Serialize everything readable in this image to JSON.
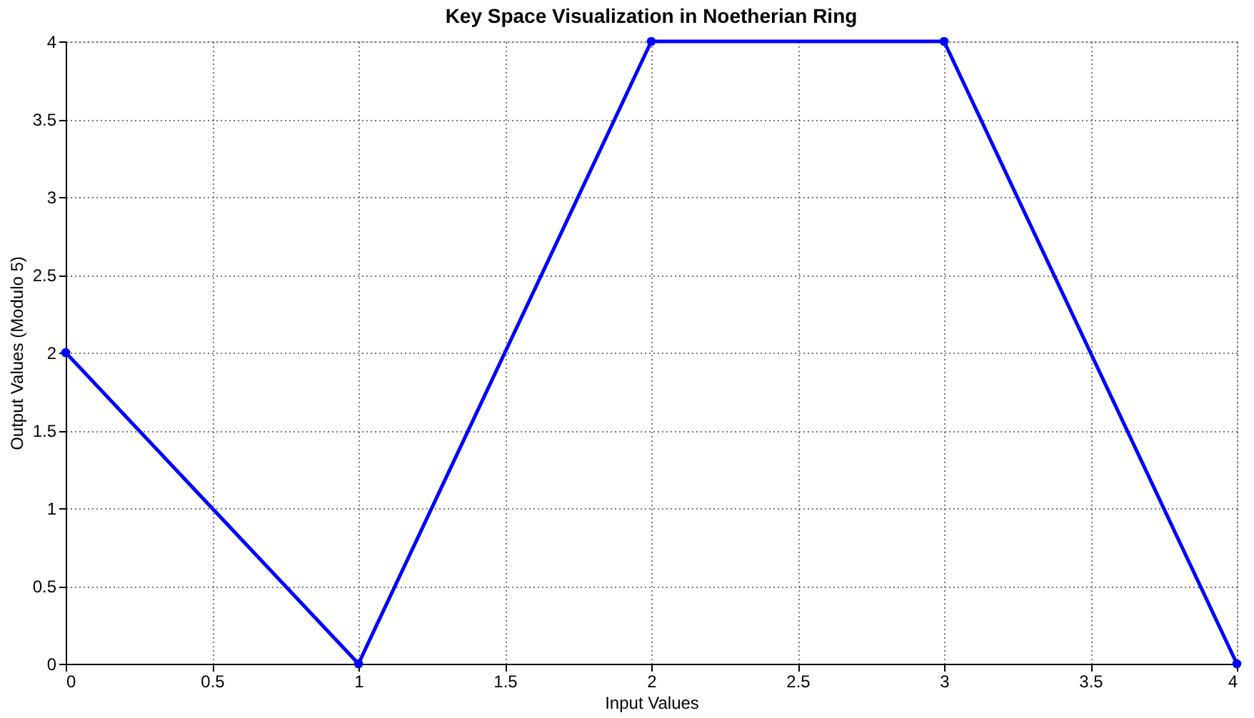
{
  "chart_data": {
    "type": "line",
    "title": "Key Space Visualization in Noetherian Ring",
    "xlabel": "Input Values",
    "ylabel": "Output Values (Modulo 5)",
    "x": [
      0,
      1,
      2,
      3,
      4
    ],
    "series": [
      {
        "color": "#0000ff",
        "values": [
          2,
          0,
          4,
          4,
          0
        ]
      }
    ],
    "xlim": [
      0,
      4
    ],
    "ylim": [
      0,
      4
    ],
    "xticks": [
      0,
      0.5,
      1,
      1.5,
      2,
      2.5,
      3,
      3.5,
      4
    ],
    "yticks": [
      0,
      0.5,
      1,
      1.5,
      2,
      2.5,
      3,
      3.5,
      4
    ],
    "grid": true,
    "marker": "circle",
    "line_style": "solid"
  }
}
